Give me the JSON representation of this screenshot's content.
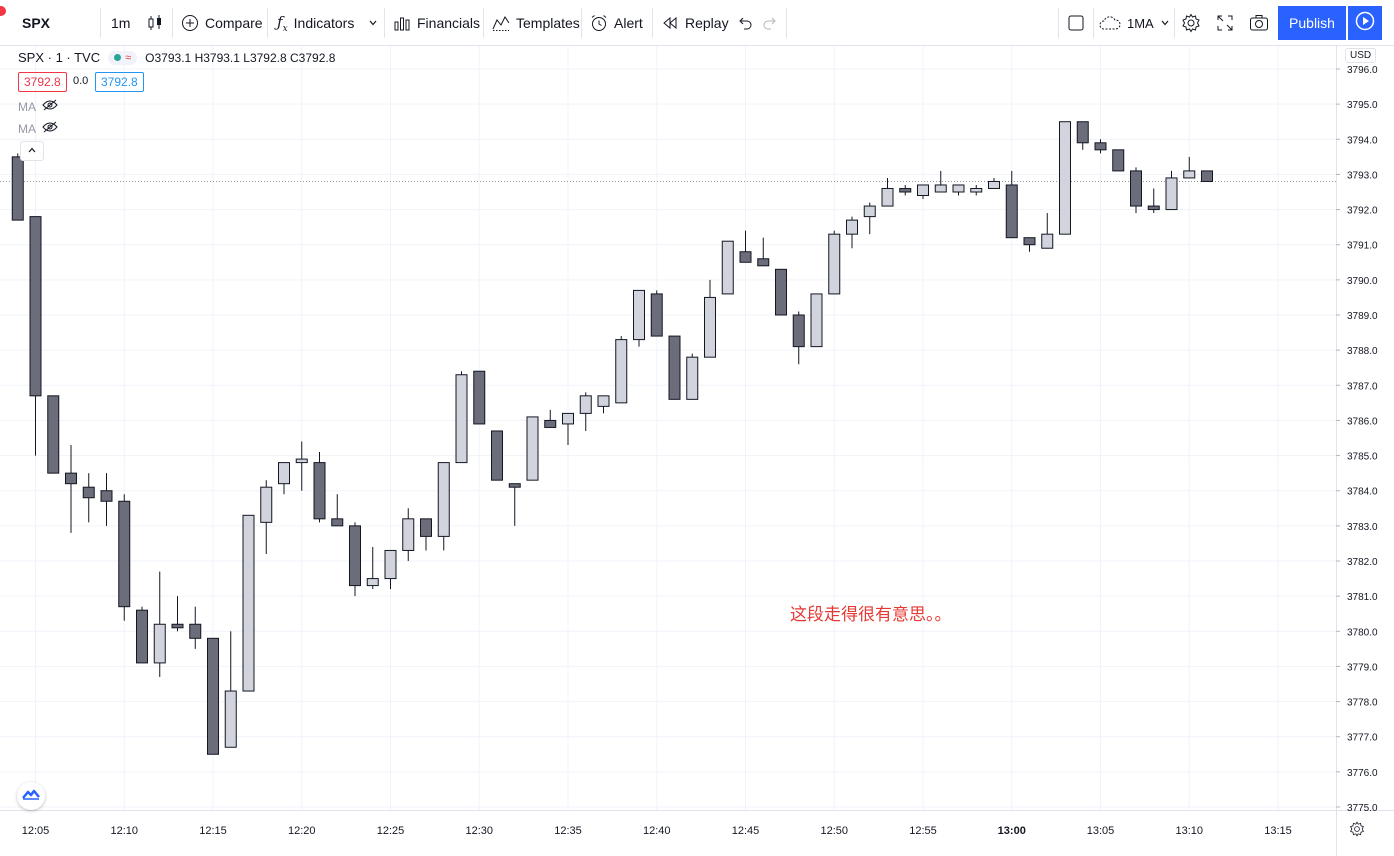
{
  "toolbar": {
    "symbol": "SPX",
    "interval": "1m",
    "compare": "Compare",
    "indicators": "Indicators",
    "financials": "Financials",
    "templates": "Templates",
    "alert": "Alert",
    "replay": "Replay",
    "layout": "1MA",
    "publish": "Publish"
  },
  "legend": {
    "title": "SPX · 1 · TVC",
    "open": "O3793.1",
    "high": "H3793.1",
    "low": "L3792.8",
    "close": "C3792.8",
    "bid": "3792.8",
    "spread": "0.0",
    "ask": "3792.8"
  },
  "indicators": [
    {
      "label": "MA"
    },
    {
      "label": "MA"
    }
  ],
  "currency": "USD",
  "annotation": "这段走得很有意思。。",
  "colors": {
    "up_fill": "#d1d4dc",
    "down_fill": "#6b6e7a",
    "wick": "#131722",
    "accent": "#2962ff",
    "annotation": "#e53935"
  },
  "chart_data": {
    "type": "candlestick",
    "interval_minutes": 1,
    "x_ticks": [
      "12:05",
      "12:10",
      "12:15",
      "12:20",
      "12:25",
      "12:30",
      "12:35",
      "12:40",
      "12:45",
      "12:50",
      "12:55",
      "13:00",
      "13:05",
      "13:10",
      "13:15"
    ],
    "y_ticks": [
      3775.0,
      3776.0,
      3777.0,
      3778.0,
      3779.0,
      3780.0,
      3781.0,
      3782.0,
      3783.0,
      3784.0,
      3785.0,
      3786.0,
      3787.0,
      3788.0,
      3789.0,
      3790.0,
      3791.0,
      3792.0,
      3793.0,
      3794.0,
      3795.0,
      3796.0
    ],
    "ylim": [
      3774.6,
      3796.2
    ],
    "last_price": 3792.8,
    "candles": [
      {
        "t": "12:04",
        "o": 3793.5,
        "h": 3793.6,
        "l": 3791.7,
        "c": 3791.7
      },
      {
        "t": "12:05",
        "o": 3791.8,
        "h": 3791.8,
        "l": 3785.0,
        "c": 3786.7
      },
      {
        "t": "12:06",
        "o": 3786.7,
        "h": 3786.7,
        "l": 3784.5,
        "c": 3784.5
      },
      {
        "t": "12:07",
        "o": 3784.5,
        "h": 3785.3,
        "l": 3782.8,
        "c": 3784.2
      },
      {
        "t": "12:08",
        "o": 3784.1,
        "h": 3784.5,
        "l": 3783.1,
        "c": 3783.8
      },
      {
        "t": "12:09",
        "o": 3784.0,
        "h": 3784.5,
        "l": 3783.0,
        "c": 3783.7
      },
      {
        "t": "12:10",
        "o": 3783.7,
        "h": 3783.9,
        "l": 3780.3,
        "c": 3780.7
      },
      {
        "t": "12:11",
        "o": 3780.6,
        "h": 3780.7,
        "l": 3779.1,
        "c": 3779.1
      },
      {
        "t": "12:12",
        "o": 3779.1,
        "h": 3781.7,
        "l": 3778.7,
        "c": 3780.2
      },
      {
        "t": "12:13",
        "o": 3780.2,
        "h": 3781.0,
        "l": 3780.0,
        "c": 3780.1
      },
      {
        "t": "12:14",
        "o": 3780.2,
        "h": 3780.7,
        "l": 3779.5,
        "c": 3779.8
      },
      {
        "t": "12:15",
        "o": 3779.8,
        "h": 3779.8,
        "l": 3776.5,
        "c": 3776.5
      },
      {
        "t": "12:16",
        "o": 3776.7,
        "h": 3780.0,
        "l": 3776.7,
        "c": 3778.3
      },
      {
        "t": "12:17",
        "o": 3778.3,
        "h": 3783.3,
        "l": 3778.3,
        "c": 3783.3
      },
      {
        "t": "12:18",
        "o": 3783.1,
        "h": 3784.3,
        "l": 3782.2,
        "c": 3784.1
      },
      {
        "t": "12:19",
        "o": 3784.2,
        "h": 3784.8,
        "l": 3783.9,
        "c": 3784.8
      },
      {
        "t": "12:20",
        "o": 3784.8,
        "h": 3785.4,
        "l": 3784.0,
        "c": 3784.9
      },
      {
        "t": "12:21",
        "o": 3784.8,
        "h": 3785.1,
        "l": 3783.1,
        "c": 3783.2
      },
      {
        "t": "12:22",
        "o": 3783.2,
        "h": 3783.9,
        "l": 3783.0,
        "c": 3783.0
      },
      {
        "t": "12:23",
        "o": 3783.0,
        "h": 3783.1,
        "l": 3781.0,
        "c": 3781.3
      },
      {
        "t": "12:24",
        "o": 3781.3,
        "h": 3782.4,
        "l": 3781.2,
        "c": 3781.5
      },
      {
        "t": "12:25",
        "o": 3781.5,
        "h": 3782.2,
        "l": 3781.2,
        "c": 3782.3
      },
      {
        "t": "12:26",
        "o": 3782.3,
        "h": 3783.5,
        "l": 3782.0,
        "c": 3783.2
      },
      {
        "t": "12:27",
        "o": 3783.2,
        "h": 3783.2,
        "l": 3782.3,
        "c": 3782.7
      },
      {
        "t": "12:28",
        "o": 3782.7,
        "h": 3784.8,
        "l": 3782.3,
        "c": 3784.8
      },
      {
        "t": "12:29",
        "o": 3784.8,
        "h": 3787.4,
        "l": 3784.8,
        "c": 3787.3
      },
      {
        "t": "12:30",
        "o": 3787.4,
        "h": 3787.4,
        "l": 3785.9,
        "c": 3785.9
      },
      {
        "t": "12:31",
        "o": 3785.7,
        "h": 3785.7,
        "l": 3784.3,
        "c": 3784.3
      },
      {
        "t": "12:32",
        "o": 3784.2,
        "h": 3784.2,
        "l": 3783.0,
        "c": 3784.1
      },
      {
        "t": "12:33",
        "o": 3784.3,
        "h": 3786.1,
        "l": 3784.3,
        "c": 3786.1
      },
      {
        "t": "12:34",
        "o": 3786.0,
        "h": 3786.3,
        "l": 3785.8,
        "c": 3785.8
      },
      {
        "t": "12:35",
        "o": 3785.9,
        "h": 3786.2,
        "l": 3785.3,
        "c": 3786.2
      },
      {
        "t": "12:36",
        "o": 3786.2,
        "h": 3786.8,
        "l": 3785.7,
        "c": 3786.7
      },
      {
        "t": "12:37",
        "o": 3786.4,
        "h": 3786.7,
        "l": 3786.2,
        "c": 3786.7
      },
      {
        "t": "12:38",
        "o": 3786.5,
        "h": 3788.4,
        "l": 3786.5,
        "c": 3788.3
      },
      {
        "t": "12:39",
        "o": 3788.3,
        "h": 3789.7,
        "l": 3788.1,
        "c": 3789.7
      },
      {
        "t": "12:40",
        "o": 3789.6,
        "h": 3789.7,
        "l": 3788.4,
        "c": 3788.4
      },
      {
        "t": "12:41",
        "o": 3788.4,
        "h": 3788.4,
        "l": 3786.6,
        "c": 3786.6
      },
      {
        "t": "12:42",
        "o": 3786.6,
        "h": 3787.9,
        "l": 3786.6,
        "c": 3787.8
      },
      {
        "t": "12:43",
        "o": 3787.8,
        "h": 3790.0,
        "l": 3787.8,
        "c": 3789.5
      },
      {
        "t": "12:44",
        "o": 3789.6,
        "h": 3791.1,
        "l": 3789.6,
        "c": 3791.1
      },
      {
        "t": "12:45",
        "o": 3790.8,
        "h": 3791.4,
        "l": 3790.5,
        "c": 3790.5
      },
      {
        "t": "12:46",
        "o": 3790.6,
        "h": 3791.2,
        "l": 3790.4,
        "c": 3790.4
      },
      {
        "t": "12:47",
        "o": 3790.3,
        "h": 3790.3,
        "l": 3789.0,
        "c": 3789.0
      },
      {
        "t": "12:48",
        "o": 3789.0,
        "h": 3789.1,
        "l": 3787.6,
        "c": 3788.1
      },
      {
        "t": "12:49",
        "o": 3788.1,
        "h": 3789.6,
        "l": 3788.1,
        "c": 3789.6
      },
      {
        "t": "12:50",
        "o": 3789.6,
        "h": 3791.4,
        "l": 3789.6,
        "c": 3791.3
      },
      {
        "t": "12:51",
        "o": 3791.3,
        "h": 3791.8,
        "l": 3790.9,
        "c": 3791.7
      },
      {
        "t": "12:52",
        "o": 3791.8,
        "h": 3792.2,
        "l": 3791.3,
        "c": 3792.1
      },
      {
        "t": "12:53",
        "o": 3792.1,
        "h": 3792.9,
        "l": 3792.1,
        "c": 3792.6
      },
      {
        "t": "12:54",
        "o": 3792.6,
        "h": 3792.7,
        "l": 3792.4,
        "c": 3792.5
      },
      {
        "t": "12:55",
        "o": 3792.4,
        "h": 3792.7,
        "l": 3792.3,
        "c": 3792.7
      },
      {
        "t": "12:56",
        "o": 3792.5,
        "h": 3793.1,
        "l": 3792.5,
        "c": 3792.7
      },
      {
        "t": "12:57",
        "o": 3792.5,
        "h": 3792.7,
        "l": 3792.4,
        "c": 3792.7
      },
      {
        "t": "12:58",
        "o": 3792.5,
        "h": 3792.7,
        "l": 3792.4,
        "c": 3792.6
      },
      {
        "t": "12:59",
        "o": 3792.6,
        "h": 3792.9,
        "l": 3792.6,
        "c": 3792.8
      },
      {
        "t": "13:00",
        "o": 3792.7,
        "h": 3793.1,
        "l": 3791.2,
        "c": 3791.2
      },
      {
        "t": "13:01",
        "o": 3791.2,
        "h": 3791.2,
        "l": 3790.8,
        "c": 3791.0
      },
      {
        "t": "13:02",
        "o": 3790.9,
        "h": 3791.9,
        "l": 3790.9,
        "c": 3791.3
      },
      {
        "t": "13:03",
        "o": 3791.3,
        "h": 3794.5,
        "l": 3791.3,
        "c": 3794.5
      },
      {
        "t": "13:04",
        "o": 3794.5,
        "h": 3794.5,
        "l": 3793.7,
        "c": 3793.9
      },
      {
        "t": "13:05",
        "o": 3793.9,
        "h": 3794.0,
        "l": 3793.6,
        "c": 3793.7
      },
      {
        "t": "13:06",
        "o": 3793.7,
        "h": 3793.7,
        "l": 3793.1,
        "c": 3793.1
      },
      {
        "t": "13:07",
        "o": 3793.1,
        "h": 3793.2,
        "l": 3791.9,
        "c": 3792.1
      },
      {
        "t": "13:08",
        "o": 3792.1,
        "h": 3792.6,
        "l": 3791.9,
        "c": 3792.0
      },
      {
        "t": "13:09",
        "o": 3792.0,
        "h": 3793.1,
        "l": 3792.0,
        "c": 3792.9
      },
      {
        "t": "13:10",
        "o": 3792.9,
        "h": 3793.5,
        "l": 3792.9,
        "c": 3793.1
      },
      {
        "t": "13:11",
        "o": 3793.1,
        "h": 3793.1,
        "l": 3792.8,
        "c": 3792.8
      }
    ]
  }
}
